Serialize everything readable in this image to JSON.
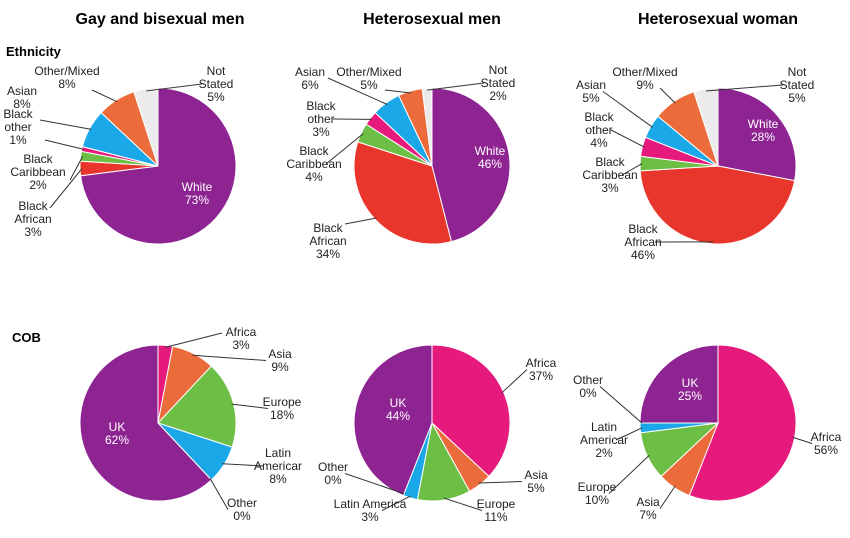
{
  "chart_data": [
    {
      "type": "pie",
      "group": "Gay and bisexual men",
      "row": "Ethnicity",
      "slices": [
        {
          "name": "White",
          "value": 73,
          "label": "White\n73%",
          "color": "#8E2492",
          "inside": true
        },
        {
          "name": "Black African",
          "value": 3,
          "label": "Black\nAfrican\n3%",
          "color": "#E8362D"
        },
        {
          "name": "Black Caribbean",
          "value": 2,
          "label": "Black\nCaribbean\n2%",
          "color": "#6DBE45"
        },
        {
          "name": "Black other",
          "value": 1,
          "label": "Black\nother\n1%",
          "color": "#E6197C"
        },
        {
          "name": "Asian",
          "value": 8,
          "label": "Asian\n8%",
          "color": "#1BA8E8"
        },
        {
          "name": "Other/Mixed",
          "value": 8,
          "label": "Other/Mixed\n8%",
          "color": "#EB6C3A"
        },
        {
          "name": "Not Stated",
          "value": 5,
          "label": "Not\nStated\n5%",
          "color": "#EBEBEB"
        }
      ]
    },
    {
      "type": "pie",
      "group": "Heterosexual men",
      "row": "Ethnicity",
      "slices": [
        {
          "name": "White",
          "value": 46,
          "label": "White\n46%",
          "color": "#8E2492",
          "inside": true
        },
        {
          "name": "Black African",
          "value": 34,
          "label": "Black\nAfrican\n34%",
          "color": "#E8362D"
        },
        {
          "name": "Black Caribbean",
          "value": 4,
          "label": "Black\nCaribbean\n4%",
          "color": "#6DBE45"
        },
        {
          "name": "Black other",
          "value": 3,
          "label": "Black\nother\n3%",
          "color": "#E6197C"
        },
        {
          "name": "Asian",
          "value": 6,
          "label": "Asian\n6%",
          "color": "#1BA8E8"
        },
        {
          "name": "Other/Mixed",
          "value": 5,
          "label": "Other/Mixed\n5%",
          "color": "#EB6C3A"
        },
        {
          "name": "Not Stated",
          "value": 2,
          "label": "Not\nStated\n2%",
          "color": "#EBEBEB"
        }
      ]
    },
    {
      "type": "pie",
      "group": "Heterosexual woman",
      "row": "Ethnicity",
      "slices": [
        {
          "name": "White",
          "value": 28,
          "label": "White\n28%",
          "color": "#8E2492",
          "inside": true
        },
        {
          "name": "Black African",
          "value": 46,
          "label": "Black\nAfrican\n46%",
          "color": "#E8362D"
        },
        {
          "name": "Black Caribbean",
          "value": 3,
          "label": "Black\nCaribbean\n3%",
          "color": "#6DBE45"
        },
        {
          "name": "Black other",
          "value": 4,
          "label": "Black\nother\n4%",
          "color": "#E6197C"
        },
        {
          "name": "Asian",
          "value": 5,
          "label": "Asian\n5%",
          "color": "#1BA8E8"
        },
        {
          "name": "Other/Mixed",
          "value": 9,
          "label": "Other/Mixed\n9%",
          "color": "#EB6C3A"
        },
        {
          "name": "Not Stated",
          "value": 5,
          "label": "Not\nStated\n5%",
          "color": "#EBEBEB"
        }
      ]
    },
    {
      "type": "pie",
      "group": "Gay and bisexual men",
      "row": "COB",
      "slices": [
        {
          "name": "Africa",
          "value": 3,
          "label": "Africa\n3%",
          "color": "#E6197C"
        },
        {
          "name": "Asia",
          "value": 9,
          "label": "Asia\n9%",
          "color": "#EB6C3A"
        },
        {
          "name": "Europe",
          "value": 18,
          "label": "Europe\n18%",
          "color": "#6DBE45"
        },
        {
          "name": "Latin Americar",
          "value": 8,
          "label": "Latin\nAmericar\n8%",
          "color": "#1BA8E8"
        },
        {
          "name": "Other",
          "value": 0,
          "label": "Other\n0%",
          "color": "#EBEBEB"
        },
        {
          "name": "UK",
          "value": 62,
          "label": "UK\n62%",
          "color": "#8E2492",
          "inside": true
        }
      ]
    },
    {
      "type": "pie",
      "group": "Heterosexual men",
      "row": "COB",
      "slices": [
        {
          "name": "Africa",
          "value": 37,
          "label": "Africa\n37%",
          "color": "#E6197C"
        },
        {
          "name": "Asia",
          "value": 5,
          "label": "Asia\n5%",
          "color": "#EB6C3A"
        },
        {
          "name": "Europe",
          "value": 11,
          "label": "Europe\n11%",
          "color": "#6DBE45"
        },
        {
          "name": "Latin America",
          "value": 3,
          "label": "Latin America\n3%",
          "color": "#1BA8E8"
        },
        {
          "name": "Other",
          "value": 0,
          "label": "Other\n0%",
          "color": "#EBEBEB"
        },
        {
          "name": "UK",
          "value": 44,
          "label": "UK\n44%",
          "color": "#8E2492",
          "inside": true
        }
      ]
    },
    {
      "type": "pie",
      "group": "Heterosexual woman",
      "row": "COB",
      "slices": [
        {
          "name": "Africa",
          "value": 56,
          "label": "Africa\n56%",
          "color": "#E6197C"
        },
        {
          "name": "Asia",
          "value": 7,
          "label": "Asia\n7%",
          "color": "#EB6C3A"
        },
        {
          "name": "Europe",
          "value": 10,
          "label": "Europe\n10%",
          "color": "#6DBE45"
        },
        {
          "name": "Latin Americar",
          "value": 2,
          "label": "Latin\nAmericar\n2%",
          "color": "#1BA8E8"
        },
        {
          "name": "Other",
          "value": 0,
          "label": "Other\n0%",
          "color": "#EBEBEB"
        },
        {
          "name": "UK",
          "value": 25,
          "label": "UK\n25%",
          "color": "#8E2492",
          "inside": true
        }
      ]
    }
  ],
  "headers": {
    "columns": [
      "Gay and bisexual men",
      "Heterosexual men",
      "Heterosexual woman"
    ],
    "rows": [
      "Ethnicity",
      "COB"
    ]
  }
}
